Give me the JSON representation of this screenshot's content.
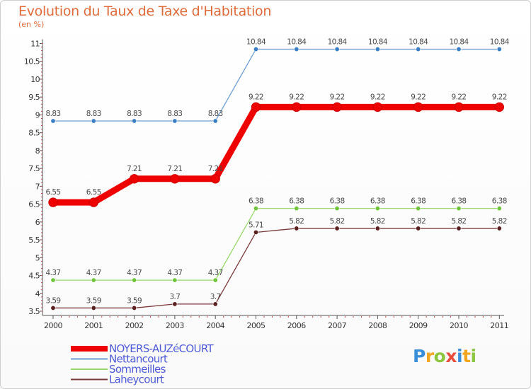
{
  "header": {
    "title": "Evolution du Taux de Taxe d'Habitation",
    "subtitle": "(en %)"
  },
  "logo": {
    "text": "Proxiti",
    "letters": [
      {
        "ch": "P",
        "color": "#3a8fd8"
      },
      {
        "ch": "r",
        "color": "#f2a51e"
      },
      {
        "ch": "o",
        "color": "#8cc63f"
      },
      {
        "ch": "x",
        "color": "#e84c3d"
      },
      {
        "ch": "i",
        "color": "#3a8fd8"
      },
      {
        "ch": "t",
        "color": "#f2a51e"
      },
      {
        "ch": "i",
        "color": "#8cc63f"
      }
    ]
  },
  "chart_data": {
    "type": "line",
    "title": "Evolution du Taux de Taxe d'Habitation",
    "ylabel": "(en %)",
    "xlabel": "",
    "ylim": [
      3.5,
      11
    ],
    "yticks": [
      "3.5",
      "4",
      "4.5",
      "5",
      "5.5",
      "6",
      "6.5",
      "7",
      "7.5",
      "8",
      "8.5",
      "9",
      "9.5",
      "10",
      "10.5",
      "11"
    ],
    "categories": [
      "2000",
      "2001",
      "2002",
      "2003",
      "2004",
      "2005",
      "2006",
      "2007",
      "2008",
      "2009",
      "2010",
      "2011"
    ],
    "grid": false,
    "legend_position": "bottom-left",
    "series": [
      {
        "name": "Nettancourt",
        "color": "#6e9ed1",
        "markerColor": "#3a7fc4",
        "emphasis": false,
        "values": [
          8.83,
          8.83,
          8.83,
          8.83,
          8.83,
          10.84,
          10.84,
          10.84,
          10.84,
          10.84,
          10.84,
          10.84
        ],
        "labels": [
          "8.83",
          "8.83",
          "8.83",
          "8.83",
          "8.83",
          "10.84",
          "10.84",
          "10.84",
          "10.84",
          "10.84",
          "10.84",
          "10.84"
        ]
      },
      {
        "name": "Sommeilles",
        "color": "#98d86a",
        "markerColor": "#6fc43a",
        "emphasis": false,
        "values": [
          4.37,
          4.37,
          4.37,
          4.37,
          4.37,
          6.38,
          6.38,
          6.38,
          6.38,
          6.38,
          6.38,
          6.38
        ],
        "labels": [
          "4.37",
          "4.37",
          "4.37",
          "4.37",
          "4.37",
          "6.38",
          "6.38",
          "6.38",
          "6.38",
          "6.38",
          "6.38",
          "6.38"
        ]
      },
      {
        "name": "Laheycourt",
        "color": "#7a3a3a",
        "markerColor": "#5a1f1f",
        "emphasis": false,
        "values": [
          3.59,
          3.59,
          3.59,
          3.7,
          3.7,
          5.71,
          5.82,
          5.82,
          5.82,
          5.82,
          5.82,
          5.82
        ],
        "labels": [
          "3.59",
          "3.59",
          "3.59",
          "3.7",
          "3.7",
          "5.71",
          "5.82",
          "5.82",
          "5.82",
          "5.82",
          "5.82",
          "5.82"
        ]
      },
      {
        "name": "NOYERS-AUZéCOURT",
        "color": "#ee0000",
        "markerColor": "#ee0000",
        "emphasis": true,
        "values": [
          6.55,
          6.55,
          7.21,
          7.21,
          7.21,
          9.22,
          9.22,
          9.22,
          9.22,
          9.22,
          9.22,
          9.22
        ],
        "labels": [
          "6.55",
          "6.55",
          "7.21",
          "7.21",
          "7.21",
          "9.22",
          "9.22",
          "9.22",
          "9.22",
          "9.22",
          "9.22",
          "9.22"
        ]
      }
    ],
    "legend_order": [
      "NOYERS-AUZéCOURT",
      "Nettancourt",
      "Sommeilles",
      "Laheycourt"
    ]
  }
}
